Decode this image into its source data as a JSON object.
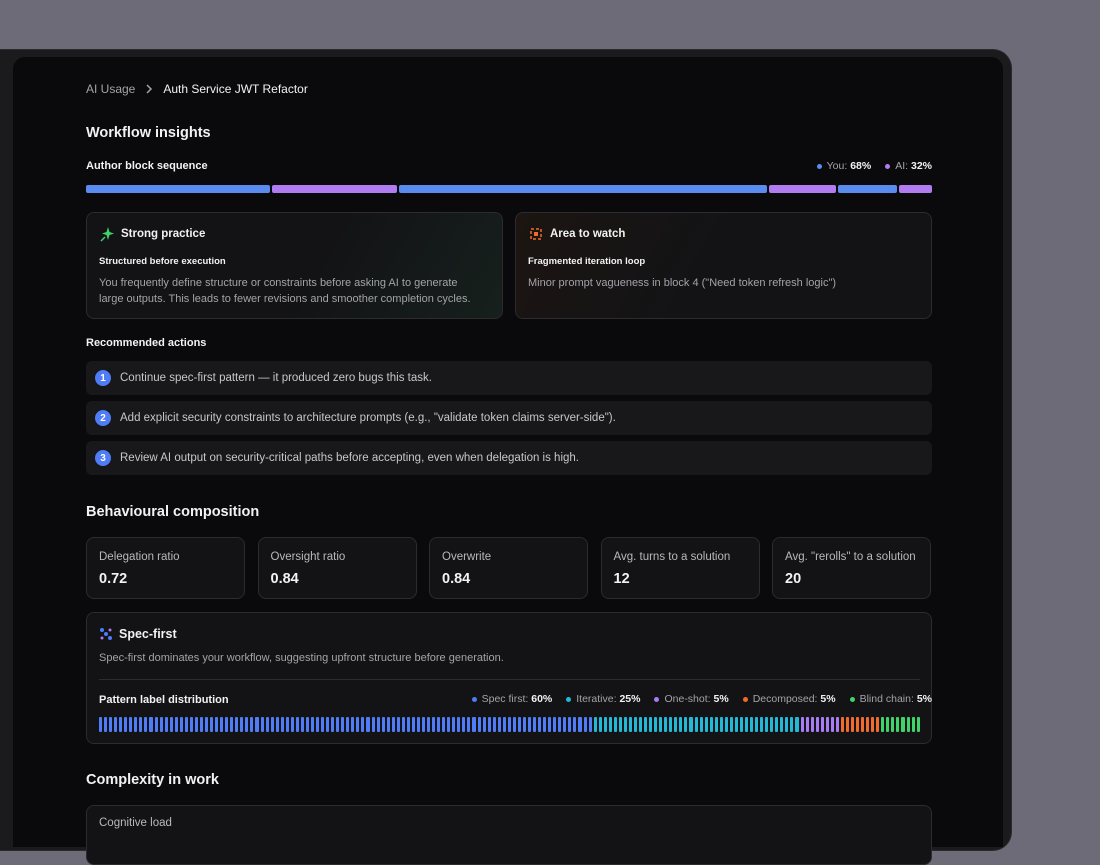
{
  "breadcrumb": {
    "parent": "AI Usage",
    "current": "Auth Service JWT Refactor"
  },
  "workflow": {
    "title": "Workflow insights",
    "sequence_label": "Author block sequence",
    "legend": [
      {
        "name": "You:",
        "value": "68%",
        "color": "#5a8cf0"
      },
      {
        "name": "AI:",
        "value": "32%",
        "color": "#b07cf0"
      }
    ],
    "blocks": [
      {
        "color": "#5a8cf0",
        "size": 22
      },
      {
        "color": "#b07cf0",
        "size": 15
      },
      {
        "color": "#5a8cf0",
        "size": 44
      },
      {
        "color": "#b07cf0",
        "size": 8
      },
      {
        "color": "#5a8cf0",
        "size": 7
      },
      {
        "color": "#b07cf0",
        "size": 4
      }
    ],
    "cards": [
      {
        "title": "Strong practice",
        "subtitle": "Structured before execution",
        "text": "You frequently define structure or constraints before asking AI to generate large outputs. This leads to fewer revisions and smoother completion cycles."
      },
      {
        "title": "Area to watch",
        "subtitle": "Fragmented iteration loop",
        "text": "Minor prompt vagueness in block 4 (\"Need token refresh logic\")"
      }
    ],
    "actions_title": "Recommended actions",
    "actions": [
      {
        "number": 1,
        "text": "Continue spec-first pattern — it produced zero bugs this task."
      },
      {
        "number": 2,
        "text": "Add explicit security constraints to architecture prompts (e.g., \"validate token claims server-side\")."
      },
      {
        "number": 3,
        "text": "Review AI output on security-critical paths before accepting, even when delegation is high."
      }
    ]
  },
  "composition": {
    "title": "Behavioural composition",
    "metrics": [
      {
        "label": "Delegation ratio",
        "value": "0.72"
      },
      {
        "label": "Oversight ratio",
        "value": "0.84"
      },
      {
        "label": "Overwrite",
        "value": "0.84"
      },
      {
        "label": "Avg. turns to a solution",
        "value": "12"
      },
      {
        "label": "Avg. \"rerolls\" to a solution",
        "value": "20"
      }
    ],
    "pattern": {
      "title": "Spec-first",
      "description": "Spec-first dominates your workflow, suggesting upfront structure before generation.",
      "distribution_label": "Pattern label distribution",
      "series": [
        {
          "name": "Spec first:",
          "value": 60,
          "label": "60%",
          "color": "#4f7cf7"
        },
        {
          "name": "Iterative:",
          "value": 25,
          "label": "25%",
          "color": "#22b8d8"
        },
        {
          "name": "One-shot:",
          "value": 5,
          "label": "5%",
          "color": "#a77cf5"
        },
        {
          "name": "Decomposed:",
          "value": 5,
          "label": "5%",
          "color": "#f06b2c"
        },
        {
          "name": "Blind chain:",
          "value": 5,
          "label": "5%",
          "color": "#3fd46a"
        }
      ]
    }
  },
  "complexity": {
    "title": "Complexity in work",
    "card_label": "Cognitive load"
  }
}
